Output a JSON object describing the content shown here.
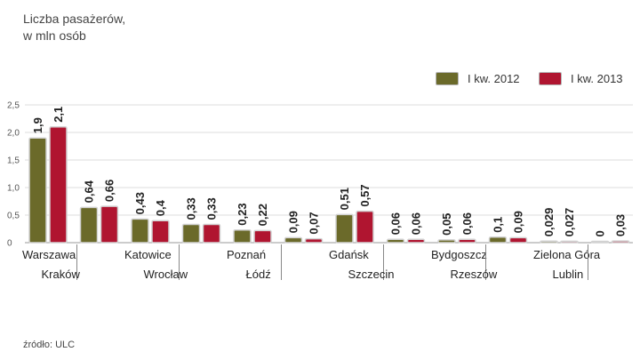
{
  "chart_data": {
    "type": "bar",
    "title_lines": [
      "Liczba pasażerów,",
      "w mln osób"
    ],
    "categories": [
      "Warszawa",
      "Kraków",
      "Katowice",
      "Wrocław",
      "Poznań",
      "Łódź",
      "Gdańsk",
      "Szczecin",
      "Bydgoszcz",
      "Rzeszów",
      "Zielona Góra",
      "Lublin"
    ],
    "series": [
      {
        "name": "I kw. 2012",
        "color": "#6b6a2a",
        "values": [
          1.9,
          0.64,
          0.43,
          0.33,
          0.23,
          0.09,
          0.51,
          0.06,
          0.05,
          0.1,
          0.029,
          0
        ],
        "labels": [
          "1,9",
          "0,64",
          "0,43",
          "0,33",
          "0,23",
          "0,09",
          "0,51",
          "0,06",
          "0,05",
          "0,1",
          "0,029",
          "0"
        ]
      },
      {
        "name": "I kw. 2013",
        "color": "#b01530",
        "values": [
          2.1,
          0.66,
          0.4,
          0.33,
          0.22,
          0.07,
          0.57,
          0.06,
          0.06,
          0.09,
          0.027,
          0.03
        ],
        "labels": [
          "2,1",
          "0,66",
          "0,4",
          "0,33",
          "0,22",
          "0,07",
          "0,57",
          "0,06",
          "0,06",
          "0,09",
          "0,027",
          "0,03"
        ]
      }
    ],
    "ylim": [
      0,
      2.5
    ],
    "yticks": [
      0,
      0.5,
      1,
      1.5,
      2,
      2.5
    ],
    "ytick_labels": [
      "0",
      "0,5",
      "1,0",
      "1,5",
      "2,0",
      "2,5"
    ],
    "grid": true,
    "legend": "top-right",
    "source": "źródło: ULC"
  }
}
